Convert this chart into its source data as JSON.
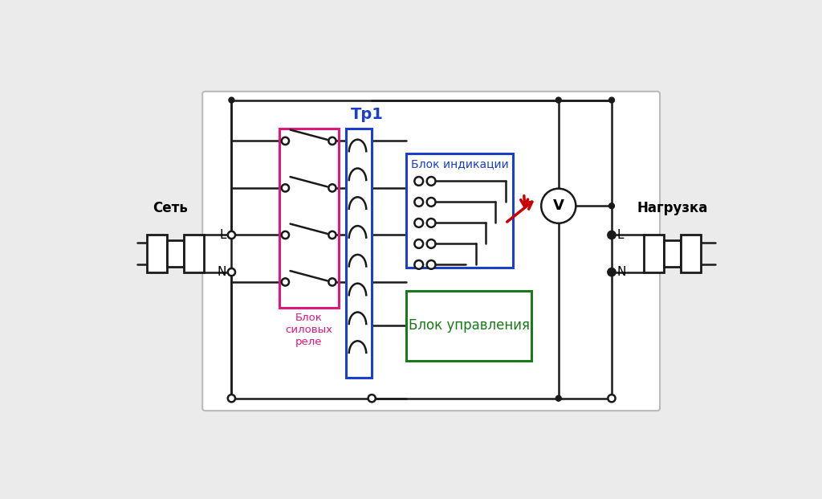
{
  "bg_color": "#ebebeb",
  "box_bg": "#ffffff",
  "label_set": "Сеть",
  "label_load": "Нагрузка",
  "label_relay": "Блок\nсиловых\nреле",
  "label_tr1": "Тр1",
  "label_indication": "Блок индикации",
  "label_control": "Блок управления",
  "color_relay_box": "#e0187a",
  "color_tr1_box": "#1a3fcc",
  "color_indication_box": "#1a3fcc",
  "color_control_box": "#1a7a1a",
  "color_arrow": "#cc0000",
  "color_wire": "#1a1a1a",
  "color_border": "#bbbbbb"
}
